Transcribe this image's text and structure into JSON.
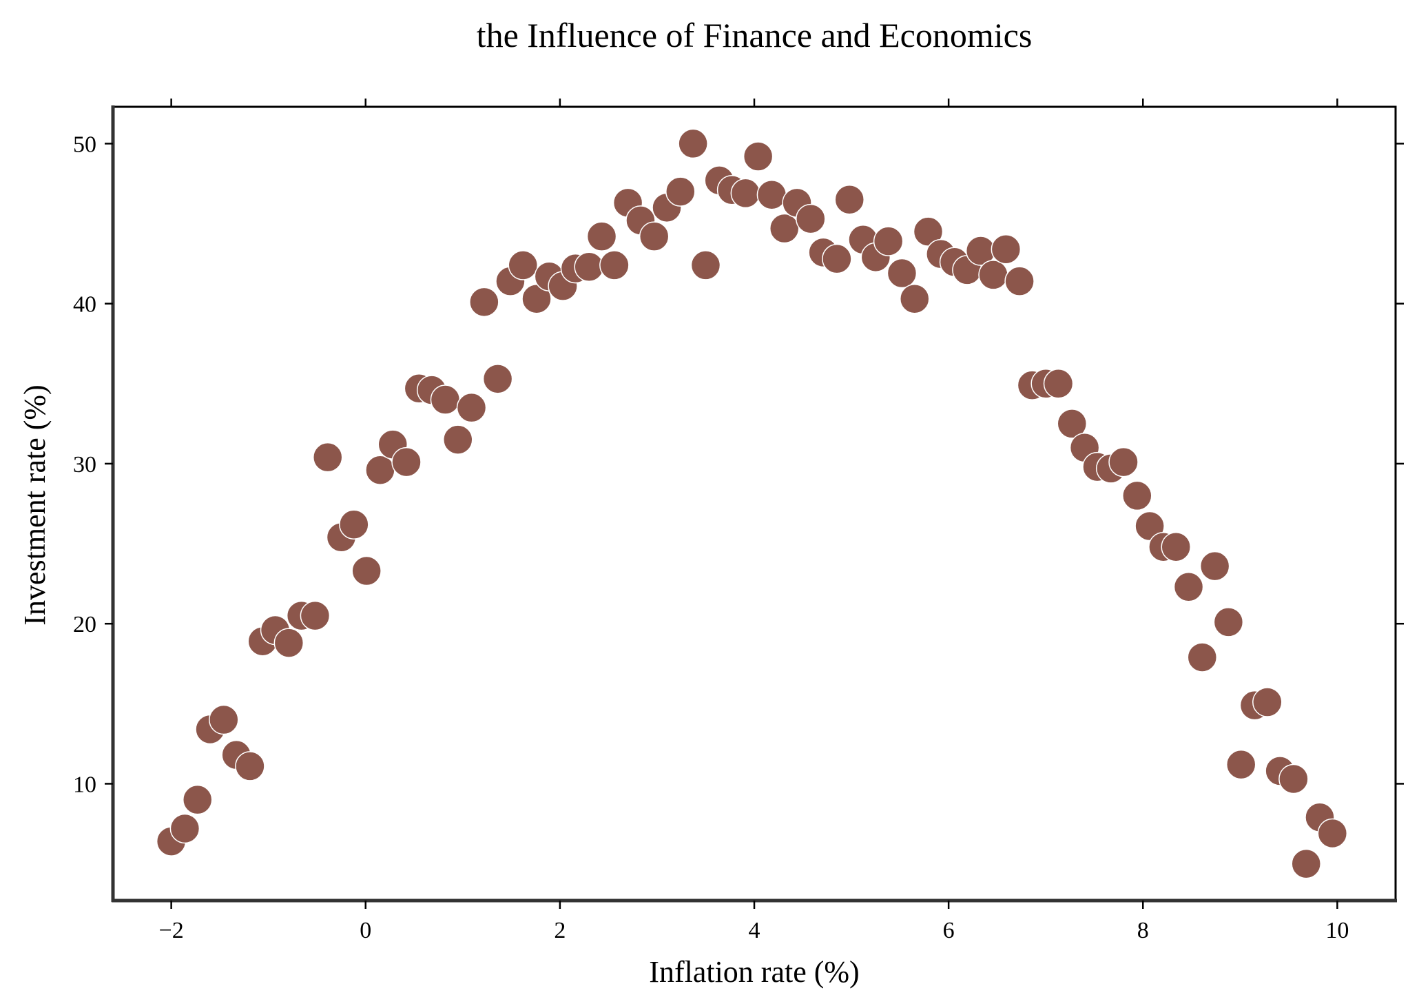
{
  "chart_data": {
    "type": "scatter",
    "title": "the Influence of Finance and Economics",
    "xlabel": "Inflation rate (%)",
    "ylabel": "Investment rate (%)",
    "xlim": [
      -2.6,
      10.6
    ],
    "ylim": [
      2.7,
      52.3
    ],
    "xticks": [
      -2,
      0,
      2,
      4,
      6,
      8,
      10
    ],
    "xtick_labels": [
      "−2",
      "0",
      "2",
      "4",
      "6",
      "8",
      "10"
    ],
    "yticks": [
      10,
      20,
      30,
      40,
      50
    ],
    "ytick_labels": [
      "10",
      "20",
      "30",
      "40",
      "50"
    ],
    "grid": false,
    "legend": "none",
    "marker_color": "#8c564b",
    "marker_edge_color": "#ffffff",
    "series": [
      {
        "x": [
          -2.0,
          -1.86,
          -1.73,
          -1.6,
          -1.46,
          -1.33,
          -1.19,
          -1.06,
          -0.93,
          -0.79,
          -0.66,
          -0.52,
          -0.39,
          -0.25,
          -0.12,
          0.01,
          0.15,
          0.28,
          0.42,
          0.55,
          0.68,
          0.82,
          0.95,
          1.09,
          1.22,
          1.36,
          1.49,
          1.62,
          1.76,
          1.89,
          2.03,
          2.16,
          2.3,
          2.43,
          2.56,
          2.7,
          2.83,
          2.97,
          3.1,
          3.24,
          3.37,
          3.5,
          3.64,
          3.77,
          3.91,
          4.04,
          4.18,
          4.31,
          4.44,
          4.58,
          4.71,
          4.85,
          4.98,
          5.12,
          5.25,
          5.38,
          5.52,
          5.65,
          5.79,
          5.92,
          6.06,
          6.19,
          6.33,
          6.46,
          6.59,
          6.73,
          6.86,
          7.0,
          7.13,
          7.27,
          7.4,
          7.53,
          7.67,
          7.8,
          7.94,
          8.07,
          8.21,
          8.34,
          8.47,
          8.61,
          8.74,
          8.88,
          9.01,
          9.15,
          9.28,
          9.41,
          9.55,
          9.68,
          9.82,
          9.95
        ],
        "y": [
          6.4,
          7.2,
          9.0,
          13.4,
          14.0,
          11.8,
          11.1,
          18.9,
          19.6,
          18.8,
          20.5,
          20.5,
          30.4,
          25.4,
          26.2,
          23.3,
          29.6,
          31.2,
          30.1,
          34.7,
          34.6,
          34.0,
          31.5,
          33.5,
          40.1,
          35.3,
          41.4,
          42.4,
          40.3,
          41.7,
          41.1,
          42.2,
          42.3,
          44.2,
          42.4,
          46.3,
          45.2,
          44.2,
          46.0,
          47.0,
          50.0,
          42.4,
          47.7,
          47.1,
          46.9,
          49.2,
          46.8,
          44.7,
          46.3,
          45.3,
          43.2,
          42.8,
          46.5,
          44.0,
          42.9,
          43.9,
          41.9,
          40.3,
          44.5,
          43.1,
          42.6,
          42.1,
          43.3,
          41.8,
          43.4,
          41.4,
          34.9,
          35.0,
          35.0,
          32.5,
          31.0,
          29.8,
          29.7,
          30.1,
          28.0,
          26.1,
          24.8,
          24.8,
          22.3,
          17.9,
          23.6,
          20.1,
          11.2,
          14.9,
          15.1,
          10.8,
          10.3,
          5.0,
          7.9,
          6.9
        ]
      }
    ]
  }
}
